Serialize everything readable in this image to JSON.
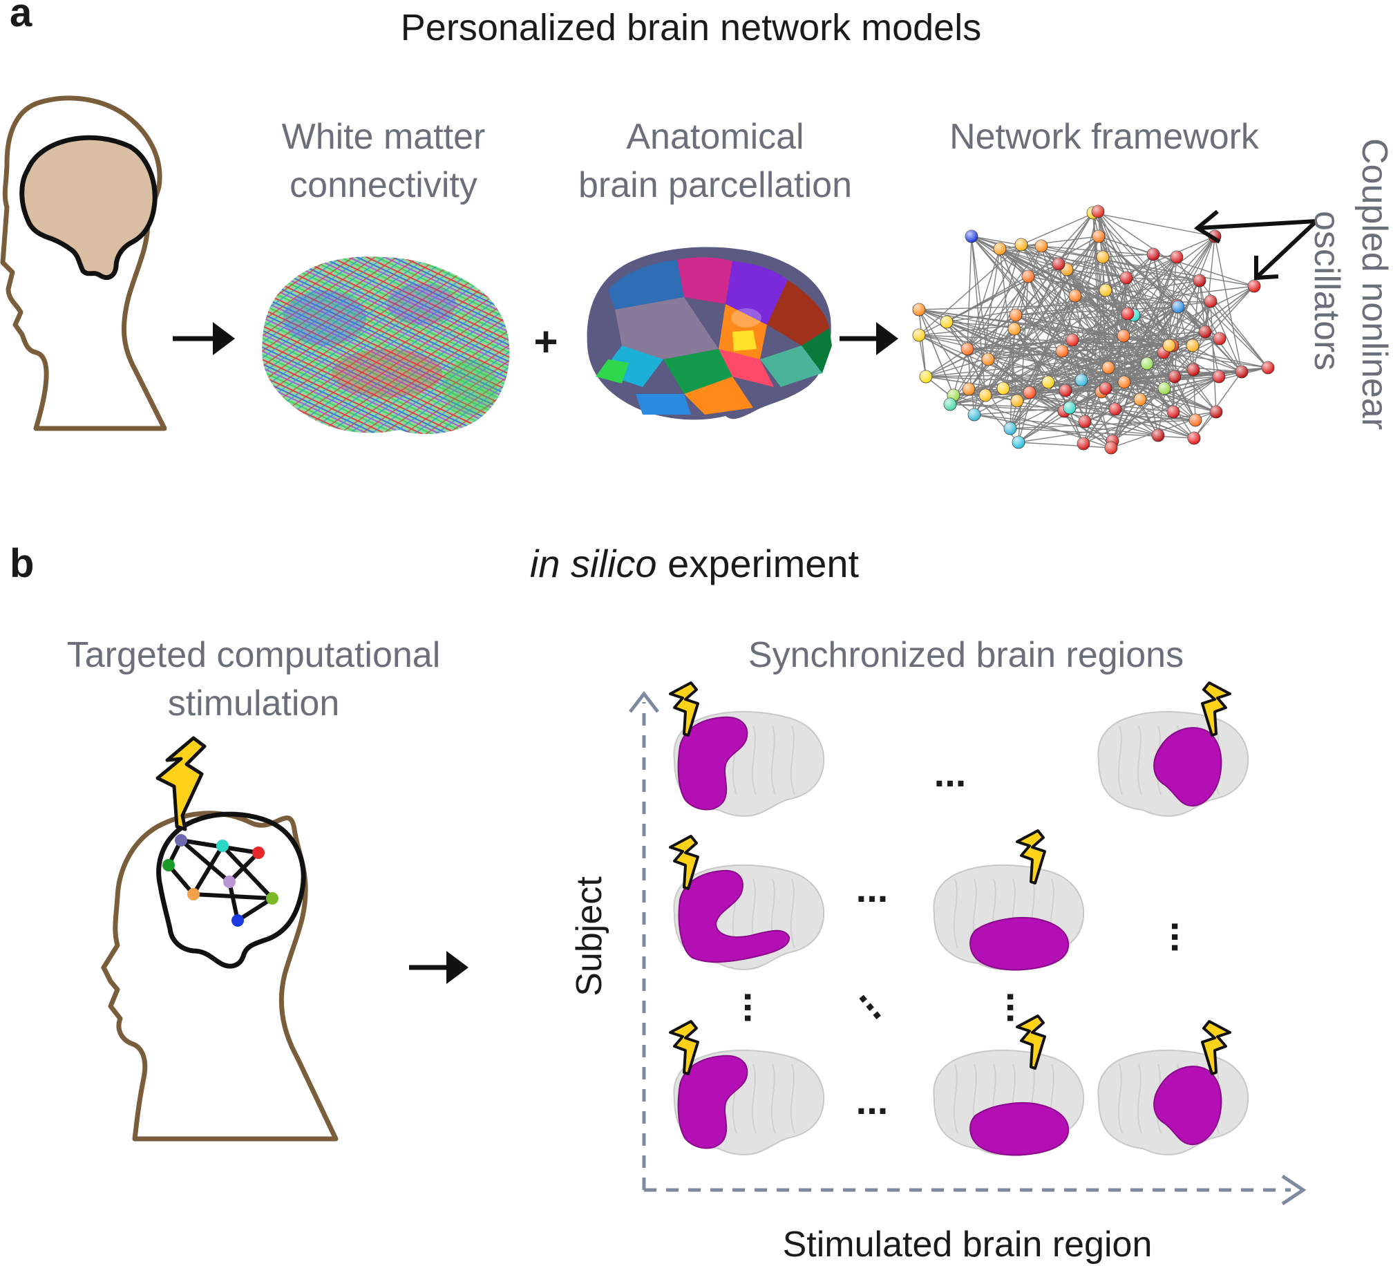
{
  "panel_a": {
    "label": "a",
    "title": "Personalized brain network models",
    "white_matter": [
      "White matter",
      "connectivity"
    ],
    "parcellation": [
      "Anatomical",
      "brain parcellation"
    ],
    "network": "Network framework",
    "oscillators": [
      "Coupled nonlinear",
      "oscillators"
    ],
    "plus": "+"
  },
  "panel_b": {
    "label": "b",
    "title_italic": "in silico",
    "title_rest": " experiment",
    "stimulation": [
      "Targeted computational",
      "stimulation"
    ],
    "synchronized": "Synchronized brain regions",
    "y_axis": "Subject",
    "x_axis": "Stimulated brain region",
    "ellipsis": "..."
  },
  "colors": {
    "head_outline": "#7a5e3c",
    "brain_fill": "#d9bea4",
    "subtitle_gray": "#6b6f7a",
    "axis_dash": "#7d8aa0",
    "magenta": "#b40fb4",
    "bolt_yellow": "#ffd21a",
    "edge_gray": "#555555"
  }
}
